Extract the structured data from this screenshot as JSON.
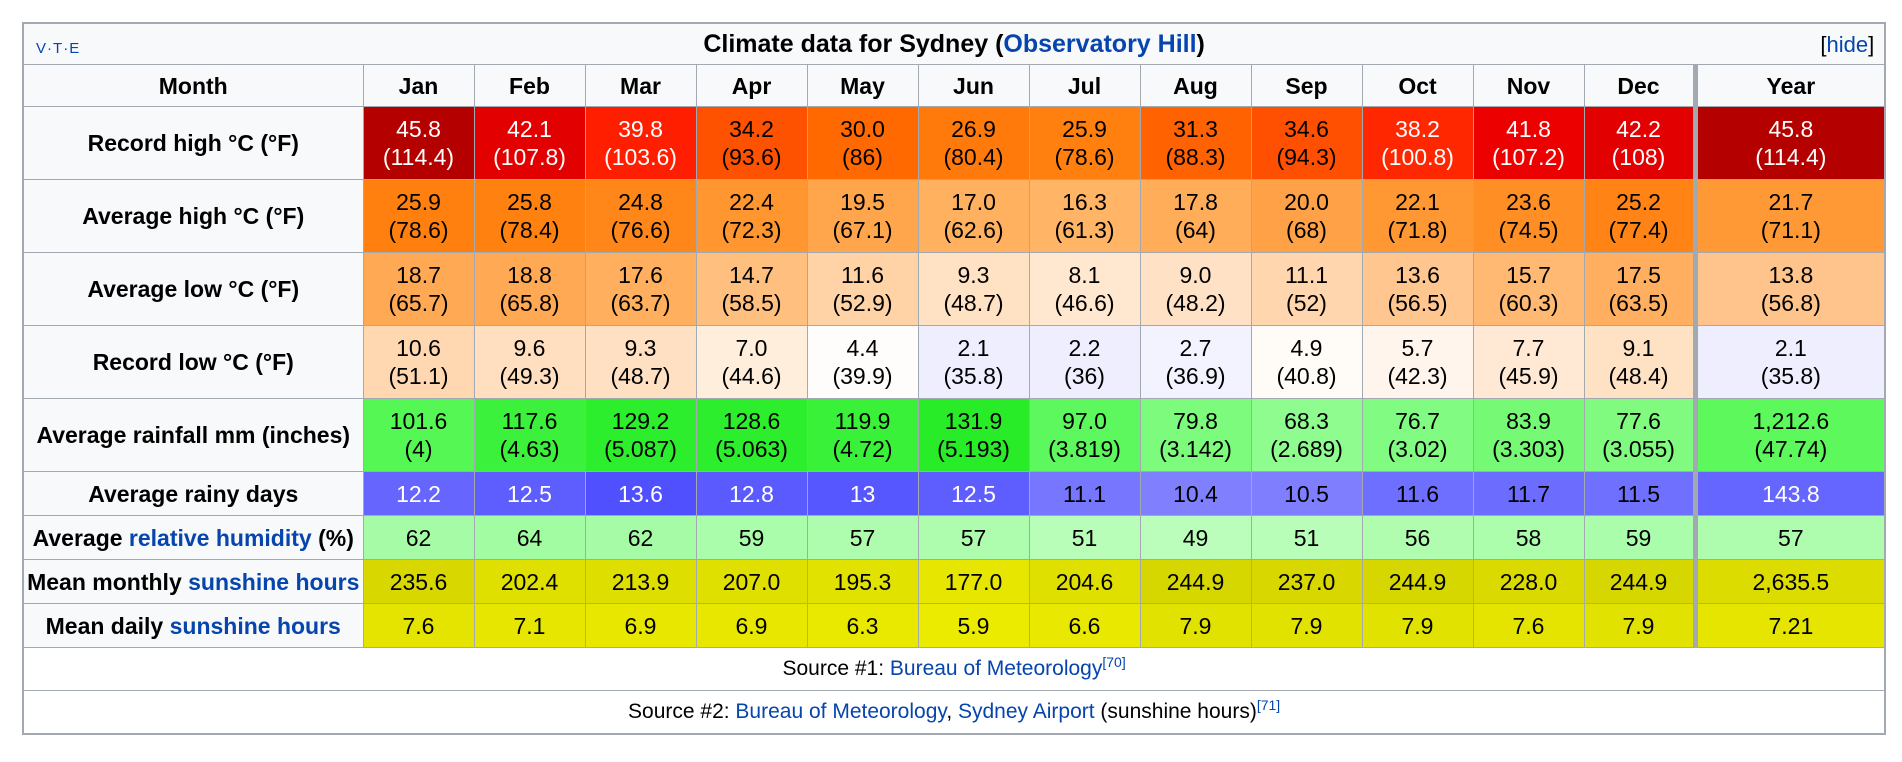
{
  "title": {
    "prefix": "Climate data for Sydney (",
    "link": "Observatory Hill",
    "suffix": ")"
  },
  "nav": {
    "v": "V",
    "t": "T",
    "e": "E",
    "dot": "·"
  },
  "hide": {
    "open": "[",
    "label": "hide",
    "close": "]"
  },
  "header": {
    "month": "Month",
    "months": [
      "Jan",
      "Feb",
      "Mar",
      "Apr",
      "May",
      "Jun",
      "Jul",
      "Aug",
      "Sep",
      "Oct",
      "Nov",
      "Dec"
    ],
    "year": "Year"
  },
  "rows": [
    {
      "label_parts": [
        "Record high °C (°F)"
      ],
      "cells": [
        {
          "v": "45.8",
          "s": "(114.4)",
          "bg": "#b50000",
          "fg": "#ffffff"
        },
        {
          "v": "42.1",
          "s": "(107.8)",
          "bg": "#e30000",
          "fg": "#ffffff"
        },
        {
          "v": "39.8",
          "s": "(103.6)",
          "bg": "#ff1f00",
          "fg": "#ffffff"
        },
        {
          "v": "34.2",
          "s": "(93.6)",
          "bg": "#ff5200",
          "fg": "#000000"
        },
        {
          "v": "30.0",
          "s": "(86)",
          "bg": "#ff6900",
          "fg": "#000000"
        },
        {
          "v": "26.9",
          "s": "(80.4)",
          "bg": "#ff7a0b",
          "fg": "#000000"
        },
        {
          "v": "25.9",
          "s": "(78.6)",
          "bg": "#ff800f",
          "fg": "#000000"
        },
        {
          "v": "31.3",
          "s": "(88.3)",
          "bg": "#ff6200",
          "fg": "#000000"
        },
        {
          "v": "34.6",
          "s": "(94.3)",
          "bg": "#ff4f00",
          "fg": "#000000"
        },
        {
          "v": "38.2",
          "s": "(100.8)",
          "bg": "#ff2700",
          "fg": "#ffffff"
        },
        {
          "v": "41.8",
          "s": "(107.2)",
          "bg": "#ec0000",
          "fg": "#ffffff"
        },
        {
          "v": "42.2",
          "s": "(108)",
          "bg": "#e30000",
          "fg": "#ffffff"
        },
        {
          "v": "45.8",
          "s": "(114.4)",
          "bg": "#b50000",
          "fg": "#ffffff"
        }
      ]
    },
    {
      "label_parts": [
        "Average high °C (°F)"
      ],
      "cells": [
        {
          "v": "25.9",
          "s": "(78.6)",
          "bg": "#ff800e",
          "fg": "#000000"
        },
        {
          "v": "25.8",
          "s": "(78.4)",
          "bg": "#ff810f",
          "fg": "#000000"
        },
        {
          "v": "24.8",
          "s": "(76.6)",
          "bg": "#ff871a",
          "fg": "#000000"
        },
        {
          "v": "22.4",
          "s": "(72.3)",
          "bg": "#ff9630",
          "fg": "#000000"
        },
        {
          "v": "19.5",
          "s": "(67.1)",
          "bg": "#ffa54b",
          "fg": "#000000"
        },
        {
          "v": "17.0",
          "s": "(62.6)",
          "bg": "#ffb160",
          "fg": "#000000"
        },
        {
          "v": "16.3",
          "s": "(61.3)",
          "bg": "#ffb466",
          "fg": "#000000"
        },
        {
          "v": "17.8",
          "s": "(64)",
          "bg": "#ffad58",
          "fg": "#000000"
        },
        {
          "v": "20.0",
          "s": "(68)",
          "bg": "#ffa247",
          "fg": "#000000"
        },
        {
          "v": "22.1",
          "s": "(71.8)",
          "bg": "#ff9733",
          "fg": "#000000"
        },
        {
          "v": "23.6",
          "s": "(74.5)",
          "bg": "#ff8e24",
          "fg": "#000000"
        },
        {
          "v": "25.2",
          "s": "(77.4)",
          "bg": "#ff8415",
          "fg": "#000000"
        },
        {
          "v": "21.7",
          "s": "(71.1)",
          "bg": "#ff9936",
          "fg": "#000000"
        }
      ]
    },
    {
      "label_parts": [
        "Average low °C (°F)"
      ],
      "cells": [
        {
          "v": "18.7",
          "s": "(65.7)",
          "bg": "#ffa954",
          "fg": "#000000"
        },
        {
          "v": "18.8",
          "s": "(65.8)",
          "bg": "#ffa954",
          "fg": "#000000"
        },
        {
          "v": "17.6",
          "s": "(63.7)",
          "bg": "#ffaf5d",
          "fg": "#000000"
        },
        {
          "v": "14.7",
          "s": "(58.5)",
          "bg": "#ffbf7f",
          "fg": "#000000"
        },
        {
          "v": "11.6",
          "s": "(52.9)",
          "bg": "#ffd3a6",
          "fg": "#000000"
        },
        {
          "v": "9.3",
          "s": "(48.7)",
          "bg": "#ffe1c3",
          "fg": "#000000"
        },
        {
          "v": "8.1",
          "s": "(46.6)",
          "bg": "#ffe7d0",
          "fg": "#000000"
        },
        {
          "v": "9.0",
          "s": "(48.2)",
          "bg": "#ffe2c6",
          "fg": "#000000"
        },
        {
          "v": "11.1",
          "s": "(52)",
          "bg": "#ffd6ad",
          "fg": "#000000"
        },
        {
          "v": "13.6",
          "s": "(56.5)",
          "bg": "#ffc690",
          "fg": "#000000"
        },
        {
          "v": "15.7",
          "s": "(60.3)",
          "bg": "#ffb972",
          "fg": "#000000"
        },
        {
          "v": "17.5",
          "s": "(63.5)",
          "bg": "#ffaf5f",
          "fg": "#000000"
        },
        {
          "v": "13.8",
          "s": "(56.8)",
          "bg": "#ffc48c",
          "fg": "#000000"
        }
      ]
    },
    {
      "label_parts": [
        "Record low °C (°F)"
      ],
      "cells": [
        {
          "v": "10.6",
          "s": "(51.1)",
          "bg": "#ffd8b1",
          "fg": "#000000"
        },
        {
          "v": "9.6",
          "s": "(49.3)",
          "bg": "#ffdfbf",
          "fg": "#000000"
        },
        {
          "v": "9.3",
          "s": "(48.7)",
          "bg": "#ffe0c2",
          "fg": "#000000"
        },
        {
          "v": "7.0",
          "s": "(44.6)",
          "bg": "#ffeedc",
          "fg": "#000000"
        },
        {
          "v": "4.4",
          "s": "(39.9)",
          "bg": "#fffdfb",
          "fg": "#000000"
        },
        {
          "v": "2.1",
          "s": "(35.8)",
          "bg": "#eeeeff",
          "fg": "#000000"
        },
        {
          "v": "2.2",
          "s": "(36)",
          "bg": "#eeeeff",
          "fg": "#000000"
        },
        {
          "v": "2.7",
          "s": "(36.9)",
          "bg": "#f3f3ff",
          "fg": "#000000"
        },
        {
          "v": "4.9",
          "s": "(40.8)",
          "bg": "#fffbf6",
          "fg": "#000000"
        },
        {
          "v": "5.7",
          "s": "(42.3)",
          "bg": "#fff5ec",
          "fg": "#000000"
        },
        {
          "v": "7.7",
          "s": "(45.9)",
          "bg": "#ffe9d5",
          "fg": "#000000"
        },
        {
          "v": "9.1",
          "s": "(48.4)",
          "bg": "#ffe1c4",
          "fg": "#000000"
        },
        {
          "v": "2.1",
          "s": "(35.8)",
          "bg": "#eeeeff",
          "fg": "#000000"
        }
      ]
    },
    {
      "label_parts": [
        "Average rainfall mm (inches)"
      ],
      "cells": [
        {
          "v": "101.6",
          "s": "(4)",
          "bg": "#55f755",
          "fg": "#000000"
        },
        {
          "v": "117.6",
          "s": "(4.63)",
          "bg": "#3cf13c",
          "fg": "#000000"
        },
        {
          "v": "129.2",
          "s": "(5.087)",
          "bg": "#2dee2d",
          "fg": "#000000"
        },
        {
          "v": "128.6",
          "s": "(5.063)",
          "bg": "#2dee2d",
          "fg": "#000000"
        },
        {
          "v": "119.9",
          "s": "(4.72)",
          "bg": "#3af13a",
          "fg": "#000000"
        },
        {
          "v": "131.9",
          "s": "(5.193)",
          "bg": "#29ec29",
          "fg": "#000000"
        },
        {
          "v": "97.0",
          "s": "(3.819)",
          "bg": "#5df85d",
          "fg": "#000000"
        },
        {
          "v": "79.8",
          "s": "(3.142)",
          "bg": "#7dfb7d",
          "fg": "#000000"
        },
        {
          "v": "68.3",
          "s": "(2.689)",
          "bg": "#8ffc8f",
          "fg": "#000000"
        },
        {
          "v": "76.7",
          "s": "(3.02)",
          "bg": "#82fb82",
          "fg": "#000000"
        },
        {
          "v": "83.9",
          "s": "(3.303)",
          "bg": "#76fa76",
          "fg": "#000000"
        },
        {
          "v": "77.6",
          "s": "(3.055)",
          "bg": "#80fb80",
          "fg": "#000000"
        },
        {
          "v": "1,212.6",
          "s": "(47.74)",
          "bg": "#5cf85c",
          "fg": "#000000"
        }
      ]
    },
    {
      "label_parts": [
        "Average rainy days"
      ],
      "cells": [
        {
          "v": "12.2",
          "bg": "#6666ff",
          "fg": "#ffffff"
        },
        {
          "v": "12.5",
          "bg": "#5e5eff",
          "fg": "#ffffff"
        },
        {
          "v": "13.6",
          "bg": "#5050ff",
          "fg": "#ffffff"
        },
        {
          "v": "12.8",
          "bg": "#5a5aff",
          "fg": "#ffffff"
        },
        {
          "v": "13",
          "bg": "#5757ff",
          "fg": "#ffffff"
        },
        {
          "v": "12.5",
          "bg": "#5e5eff",
          "fg": "#ffffff"
        },
        {
          "v": "11.1",
          "bg": "#7676ff",
          "fg": "#000000"
        },
        {
          "v": "10.4",
          "bg": "#8080ff",
          "fg": "#000000"
        },
        {
          "v": "10.5",
          "bg": "#7e7eff",
          "fg": "#000000"
        },
        {
          "v": "11.6",
          "bg": "#6e6eff",
          "fg": "#000000"
        },
        {
          "v": "11.7",
          "bg": "#6c6cff",
          "fg": "#000000"
        },
        {
          "v": "11.5",
          "bg": "#7070ff",
          "fg": "#000000"
        },
        {
          "v": "143.8",
          "bg": "#6565ff",
          "fg": "#ffffff"
        }
      ]
    },
    {
      "label_parts": [
        "Average ",
        "relative humidity",
        " (%)"
      ],
      "label_link": 1,
      "cells": [
        {
          "v": "62",
          "bg": "#a6fca6",
          "fg": "#000000"
        },
        {
          "v": "64",
          "bg": "#a2fca2",
          "fg": "#000000"
        },
        {
          "v": "62",
          "bg": "#a6fca6",
          "fg": "#000000"
        },
        {
          "v": "59",
          "bg": "#aafdaa",
          "fg": "#000000"
        },
        {
          "v": "57",
          "bg": "#aefdae",
          "fg": "#000000"
        },
        {
          "v": "57",
          "bg": "#aefdae",
          "fg": "#000000"
        },
        {
          "v": "51",
          "bg": "#b8feb8",
          "fg": "#000000"
        },
        {
          "v": "49",
          "bg": "#bbfebb",
          "fg": "#000000"
        },
        {
          "v": "51",
          "bg": "#b8feb8",
          "fg": "#000000"
        },
        {
          "v": "56",
          "bg": "#b0fdb0",
          "fg": "#000000"
        },
        {
          "v": "58",
          "bg": "#acfdac",
          "fg": "#000000"
        },
        {
          "v": "59",
          "bg": "#aafdaa",
          "fg": "#000000"
        },
        {
          "v": "57",
          "bg": "#aefdae",
          "fg": "#000000"
        }
      ]
    },
    {
      "label_parts": [
        "Mean monthly ",
        "sunshine hours"
      ],
      "label_link": 1,
      "cells": [
        {
          "v": "235.6",
          "bg": "#d8d800",
          "fg": "#000000"
        },
        {
          "v": "202.4",
          "bg": "#e0e000",
          "fg": "#000000"
        },
        {
          "v": "213.9",
          "bg": "#dede00",
          "fg": "#000000"
        },
        {
          "v": "207.0",
          "bg": "#dfdf00",
          "fg": "#000000"
        },
        {
          "v": "195.3",
          "bg": "#e2e200",
          "fg": "#000000"
        },
        {
          "v": "177.0",
          "bg": "#e6e600",
          "fg": "#000000"
        },
        {
          "v": "204.6",
          "bg": "#e0e000",
          "fg": "#000000"
        },
        {
          "v": "244.9",
          "bg": "#d6d600",
          "fg": "#000000"
        },
        {
          "v": "237.0",
          "bg": "#d8d800",
          "fg": "#000000"
        },
        {
          "v": "244.9",
          "bg": "#d6d600",
          "fg": "#000000"
        },
        {
          "v": "228.0",
          "bg": "#dada00",
          "fg": "#000000"
        },
        {
          "v": "244.9",
          "bg": "#d6d600",
          "fg": "#000000"
        },
        {
          "v": "2,635.5",
          "bg": "#dcdc00",
          "fg": "#000000"
        }
      ]
    },
    {
      "label_parts": [
        "Mean daily ",
        "sunshine hours"
      ],
      "label_link": 1,
      "cells": [
        {
          "v": "7.6",
          "bg": "#e4e400",
          "fg": "#000000"
        },
        {
          "v": "7.1",
          "bg": "#e6e600",
          "fg": "#000000"
        },
        {
          "v": "6.9",
          "bg": "#e7e700",
          "fg": "#000000"
        },
        {
          "v": "6.9",
          "bg": "#e7e700",
          "fg": "#000000"
        },
        {
          "v": "6.3",
          "bg": "#e9e900",
          "fg": "#000000"
        },
        {
          "v": "5.9",
          "bg": "#ebeb00",
          "fg": "#000000"
        },
        {
          "v": "6.6",
          "bg": "#e8e800",
          "fg": "#000000"
        },
        {
          "v": "7.9",
          "bg": "#e2e200",
          "fg": "#000000"
        },
        {
          "v": "7.9",
          "bg": "#e2e200",
          "fg": "#000000"
        },
        {
          "v": "7.9",
          "bg": "#e2e200",
          "fg": "#000000"
        },
        {
          "v": "7.6",
          "bg": "#e4e400",
          "fg": "#000000"
        },
        {
          "v": "7.9",
          "bg": "#e2e200",
          "fg": "#000000"
        },
        {
          "v": "7.21",
          "bg": "#e5e500",
          "fg": "#000000"
        }
      ]
    }
  ],
  "sources": [
    {
      "prefix": "Source #1: ",
      "link1": "Bureau of Meteorology",
      "mid": "",
      "link2": "",
      "suffix": "",
      "ref": "[70]"
    },
    {
      "prefix": "Source #2: ",
      "link1": "Bureau of Meteorology",
      "mid": ", ",
      "link2": "Sydney Airport",
      "suffix": " (sunshine hours)",
      "ref": "[71]"
    }
  ]
}
